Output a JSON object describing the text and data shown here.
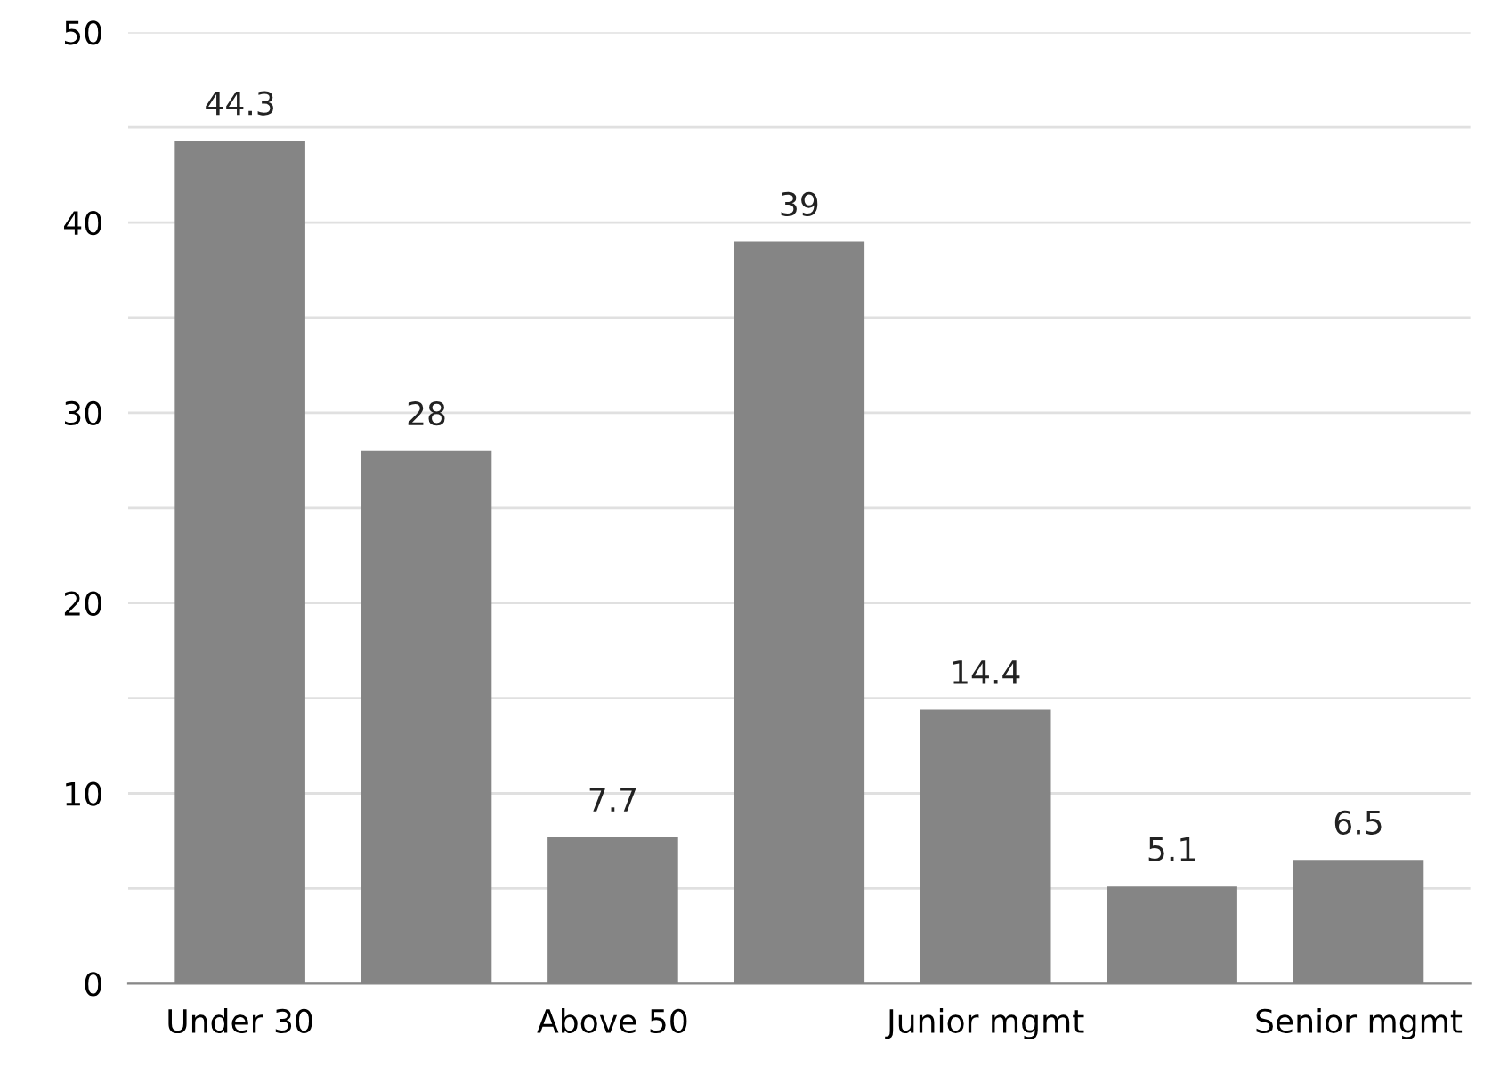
{
  "chart_data": {
    "type": "bar",
    "categories": [
      "Under 30",
      null,
      "Above 50",
      null,
      "Junior mgmt",
      null,
      "Senior mgmt"
    ],
    "values": [
      44.3,
      28,
      7.7,
      39,
      14.4,
      5.1,
      6.5
    ],
    "color": "#858585",
    "ylim": [
      0,
      50
    ],
    "yticks": [
      0,
      {
        "value": 5,
        "label": null
      },
      10,
      {
        "value": 15,
        "label": null
      },
      20,
      {
        "value": 25,
        "label": null
      },
      30,
      {
        "value": 35,
        "label": null
      },
      40,
      {
        "value": 45,
        "label": null
      },
      50
    ],
    "grid": "y",
    "data_labels": true
  }
}
